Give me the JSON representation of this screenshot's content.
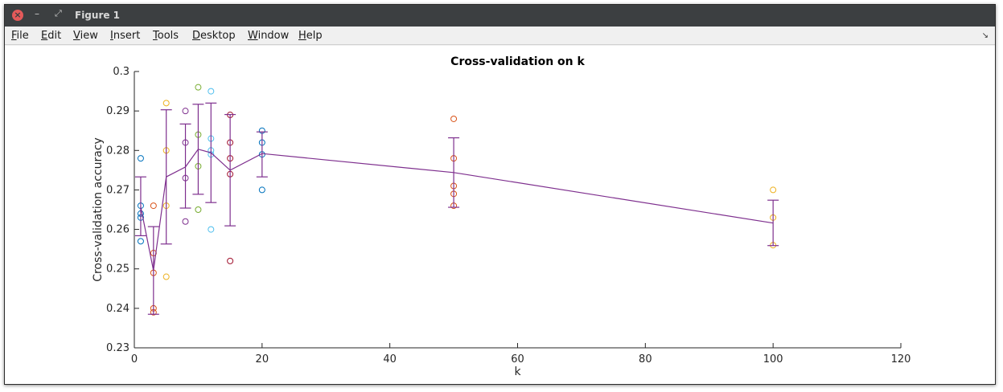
{
  "window": {
    "title": "Figure 1"
  },
  "menubar": {
    "items": [
      {
        "mnemonic": "F",
        "rest": "ile"
      },
      {
        "mnemonic": "E",
        "rest": "dit"
      },
      {
        "mnemonic": "V",
        "rest": "iew"
      },
      {
        "mnemonic": "I",
        "rest": "nsert"
      },
      {
        "mnemonic": "T",
        "rest": "ools"
      },
      {
        "mnemonic": "D",
        "rest": "esktop"
      },
      {
        "mnemonic": "W",
        "rest": "indow"
      },
      {
        "mnemonic": "H",
        "rest": "elp"
      }
    ]
  },
  "colors": {
    "line": "#7e2f8e",
    "palette": [
      "#0072bd",
      "#d95319",
      "#edb120",
      "#7e2f8e",
      "#77ac30",
      "#4dbeee",
      "#a2142f"
    ]
  },
  "chart_data": {
    "type": "scatter",
    "title": "Cross-validation on k",
    "xlabel": "k",
    "ylabel": "Cross-validation accuracy",
    "xlim": [
      0,
      120
    ],
    "ylim": [
      0.23,
      0.3
    ],
    "xticks": [
      "0",
      "20",
      "40",
      "60",
      "80",
      "100",
      "120"
    ],
    "yticks": [
      "0.23",
      "0.24",
      "0.25",
      "0.26",
      "0.27",
      "0.28",
      "0.29",
      "0.3"
    ],
    "grid": false,
    "groups": [
      {
        "k": 1,
        "color": "#0072bd",
        "points": [
          0.278,
          0.266,
          0.264,
          0.263,
          0.257
        ]
      },
      {
        "k": 3,
        "color": "#d95319",
        "points": [
          0.266,
          0.254,
          0.249,
          0.24,
          0.239
        ]
      },
      {
        "k": 5,
        "color": "#edb120",
        "points": [
          0.292,
          0.28,
          0.266,
          0.248
        ]
      },
      {
        "k": 8,
        "color": "#7e2f8e",
        "points": [
          0.29,
          0.282,
          0.273,
          0.262
        ]
      },
      {
        "k": 10,
        "color": "#77ac30",
        "points": [
          0.296,
          0.284,
          0.276,
          0.265
        ]
      },
      {
        "k": 12,
        "color": "#4dbeee",
        "points": [
          0.295,
          0.283,
          0.28,
          0.279,
          0.26
        ]
      },
      {
        "k": 15,
        "color": "#a2142f",
        "points": [
          0.289,
          0.282,
          0.278,
          0.274,
          0.252
        ]
      },
      {
        "k": 20,
        "color": "#0072bd",
        "points": [
          0.285,
          0.282,
          0.279,
          0.27
        ]
      },
      {
        "k": 50,
        "color": "#d95319",
        "points": [
          0.288,
          0.278,
          0.271,
          0.269,
          0.266
        ]
      },
      {
        "k": 100,
        "color": "#edb120",
        "points": [
          0.27,
          0.263,
          0.256
        ]
      }
    ],
    "mean_line": {
      "x": [
        1,
        3,
        5,
        8,
        10,
        12,
        15,
        20,
        50,
        100
      ],
      "mean": [
        0.2658,
        0.2496,
        0.2733,
        0.2758,
        0.2803,
        0.2794,
        0.275,
        0.2792,
        0.2744,
        0.2616
      ],
      "lower": [
        0.2584,
        0.2385,
        0.2563,
        0.2654,
        0.2689,
        0.2668,
        0.2609,
        0.2733,
        0.2656,
        0.2559
      ],
      "upper": [
        0.2733,
        0.2607,
        0.2903,
        0.2867,
        0.2917,
        0.292,
        0.2891,
        0.2847,
        0.2832,
        0.2674
      ]
    }
  }
}
